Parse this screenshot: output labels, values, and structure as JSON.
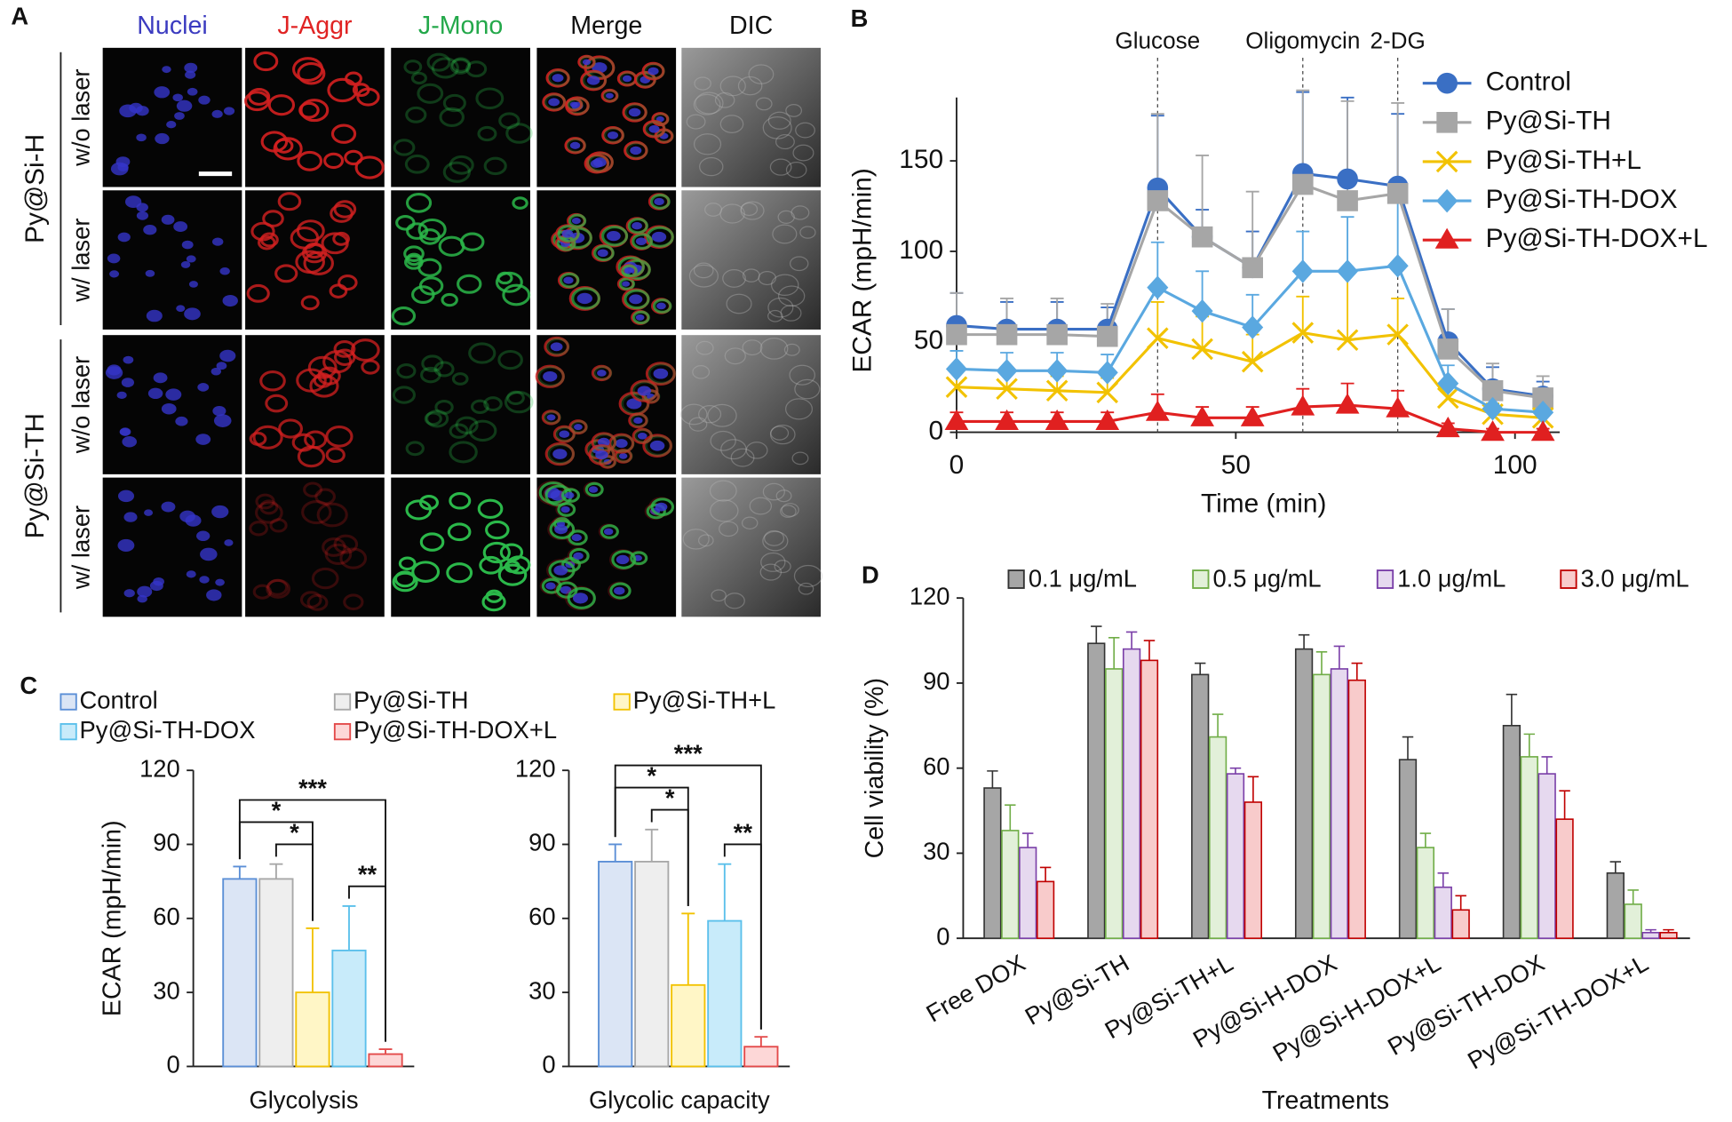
{
  "panel_a": {
    "panel": "A",
    "columns": [
      {
        "name": "Nuclei",
        "color": "#3b3bc0"
      },
      {
        "name": "J-Aggr",
        "color": "#e02424"
      },
      {
        "name": "J-Mono",
        "color": "#23a84a"
      },
      {
        "name": "Merge",
        "color": "#111111"
      },
      {
        "name": "DIC",
        "color": "#111111"
      }
    ],
    "groups": [
      {
        "name": "Py@Si-H",
        "rows": [
          "w/o laser",
          "w/ laser"
        ]
      },
      {
        "name": "Py@Si-TH",
        "rows": [
          "w/o laser",
          "w/ laser"
        ]
      }
    ]
  },
  "chart_data": [
    {
      "type": "line",
      "panel": "B",
      "x_label": "Time (min)",
      "y_label": "ECAR (mpH/min)",
      "x": [
        0,
        9,
        18,
        27,
        36,
        44,
        53,
        62,
        70,
        79,
        88,
        96,
        105
      ],
      "xlim": [
        0,
        108
      ],
      "xticks": [
        0,
        50,
        100
      ],
      "ylim": [
        0,
        185
      ],
      "yticks": [
        0,
        50,
        100,
        150
      ],
      "injections": [
        {
          "x": 36,
          "label": "Glucose"
        },
        {
          "x": 62,
          "label": "Oligomycin"
        },
        {
          "x": 79,
          "label": "2-DG"
        }
      ],
      "series": [
        {
          "name": "Control",
          "color": "#3a6fc4",
          "marker": "circle",
          "values": [
            59,
            57,
            57,
            57,
            135,
            108,
            91,
            143,
            140,
            136,
            50,
            24,
            20
          ],
          "errors": [
            18,
            15,
            15,
            12,
            40,
            15,
            20,
            45,
            45,
            40,
            18,
            12,
            8
          ]
        },
        {
          "name": "Py@Si-TH",
          "color": "#a6a6a6",
          "marker": "square",
          "values": [
            54,
            54,
            54,
            53,
            128,
            108,
            91,
            137,
            128,
            132,
            46,
            23,
            19
          ],
          "errors": [
            23,
            20,
            20,
            18,
            48,
            45,
            42,
            52,
            55,
            50,
            22,
            15,
            12
          ]
        },
        {
          "name": "Py@Si-TH+L",
          "color": "#f2c200",
          "marker": "x",
          "values": [
            25,
            24,
            23,
            22,
            52,
            46,
            39,
            55,
            51,
            54,
            19,
            10,
            8
          ],
          "errors": [
            8,
            8,
            8,
            8,
            20,
            18,
            15,
            20,
            40,
            20,
            8,
            6,
            5
          ]
        },
        {
          "name": "Py@Si-TH-DOX",
          "color": "#5aa8e0",
          "marker": "diamond",
          "values": [
            35,
            34,
            34,
            33,
            80,
            67,
            58,
            89,
            89,
            92,
            27,
            13,
            11
          ],
          "errors": [
            10,
            10,
            10,
            10,
            25,
            22,
            18,
            22,
            30,
            35,
            10,
            6,
            5
          ]
        },
        {
          "name": "Py@Si-TH-DOX+L",
          "color": "#e02020",
          "marker": "triangle",
          "values": [
            6,
            6,
            6,
            6,
            11,
            8,
            8,
            14,
            15,
            13,
            2,
            0,
            0
          ],
          "errors": [
            5,
            5,
            5,
            5,
            10,
            6,
            6,
            10,
            12,
            10,
            3,
            2,
            2
          ]
        }
      ]
    },
    {
      "type": "bar",
      "panel": "C",
      "facet": true,
      "y_label": "ECAR (mpH/min)",
      "categories": [
        "Glycolysis",
        "Glycolic capacity"
      ],
      "ylim": [
        0,
        120
      ],
      "yticks": [
        0,
        30,
        60,
        90,
        120
      ],
      "series": [
        {
          "name": "Control",
          "color": "#dbe5f5",
          "edge": "#5b8fd6",
          "values": [
            76,
            83
          ],
          "errors": [
            5,
            7
          ]
        },
        {
          "name": "Py@Si-TH",
          "color": "#eeeeee",
          "edge": "#a8a8a8",
          "values": [
            76,
            83
          ],
          "errors": [
            6,
            13
          ]
        },
        {
          "name": "Py@Si-TH+L",
          "color": "#fff6c6",
          "edge": "#f2c200",
          "values": [
            30,
            33
          ],
          "errors": [
            26,
            29
          ]
        },
        {
          "name": "Py@Si-TH-DOX",
          "color": "#c8ebfa",
          "edge": "#5bc0eb",
          "values": [
            47,
            59
          ],
          "errors": [
            18,
            23
          ]
        },
        {
          "name": "Py@Si-TH-DOX+L",
          "color": "#fdd7d7",
          "edge": "#e34a4a",
          "values": [
            5,
            8
          ],
          "errors": [
            2,
            4
          ]
        }
      ],
      "significance": [
        {
          "category": 0,
          "pair": [
            1,
            2
          ],
          "label": "*"
        },
        {
          "category": 0,
          "pair": [
            0,
            2
          ],
          "label": "*"
        },
        {
          "category": 0,
          "pair": [
            3,
            4
          ],
          "label": "**"
        },
        {
          "category": 0,
          "pair": [
            0,
            4
          ],
          "label": "***"
        },
        {
          "category": 1,
          "pair": [
            1,
            2
          ],
          "label": "*"
        },
        {
          "category": 1,
          "pair": [
            0,
            2
          ],
          "label": "*"
        },
        {
          "category": 1,
          "pair": [
            3,
            4
          ],
          "label": "**"
        },
        {
          "category": 1,
          "pair": [
            0,
            4
          ],
          "label": "***"
        }
      ]
    },
    {
      "type": "bar",
      "panel": "D",
      "x_label": "Treatments",
      "y_label": "Cell viability (%)",
      "categories": [
        "Free DOX",
        "Py@Si-TH",
        "Py@Si-TH+L",
        "Py@Si-H-DOX",
        "Py@Si-H-DOX+L",
        "Py@Si-TH-DOX",
        "Py@Si-TH-DOX+L"
      ],
      "ylim": [
        0,
        120
      ],
      "yticks": [
        0,
        30,
        60,
        90,
        120
      ],
      "series": [
        {
          "name": "0.1 μg/mL",
          "color": "#a6a6a6",
          "edge": "#333333",
          "values": [
            53,
            104,
            93,
            102,
            63,
            75,
            23
          ],
          "errors": [
            6,
            6,
            4,
            5,
            8,
            11,
            4
          ]
        },
        {
          "name": "0.5 μg/mL",
          "color": "#e2f0d9",
          "edge": "#70ad47",
          "values": [
            38,
            95,
            71,
            93,
            32,
            64,
            12
          ],
          "errors": [
            9,
            11,
            8,
            8,
            5,
            8,
            5
          ]
        },
        {
          "name": "1.0 μg/mL",
          "color": "#e6d9ef",
          "edge": "#7a3fa8",
          "values": [
            32,
            102,
            58,
            95,
            18,
            58,
            2
          ],
          "errors": [
            5,
            6,
            2,
            8,
            5,
            6,
            1
          ]
        },
        {
          "name": "3.0 μg/mL",
          "color": "#f8cbcb",
          "edge": "#c00000",
          "values": [
            20,
            98,
            48,
            91,
            10,
            42,
            2
          ],
          "errors": [
            5,
            7,
            9,
            6,
            5,
            10,
            1
          ]
        }
      ]
    }
  ]
}
